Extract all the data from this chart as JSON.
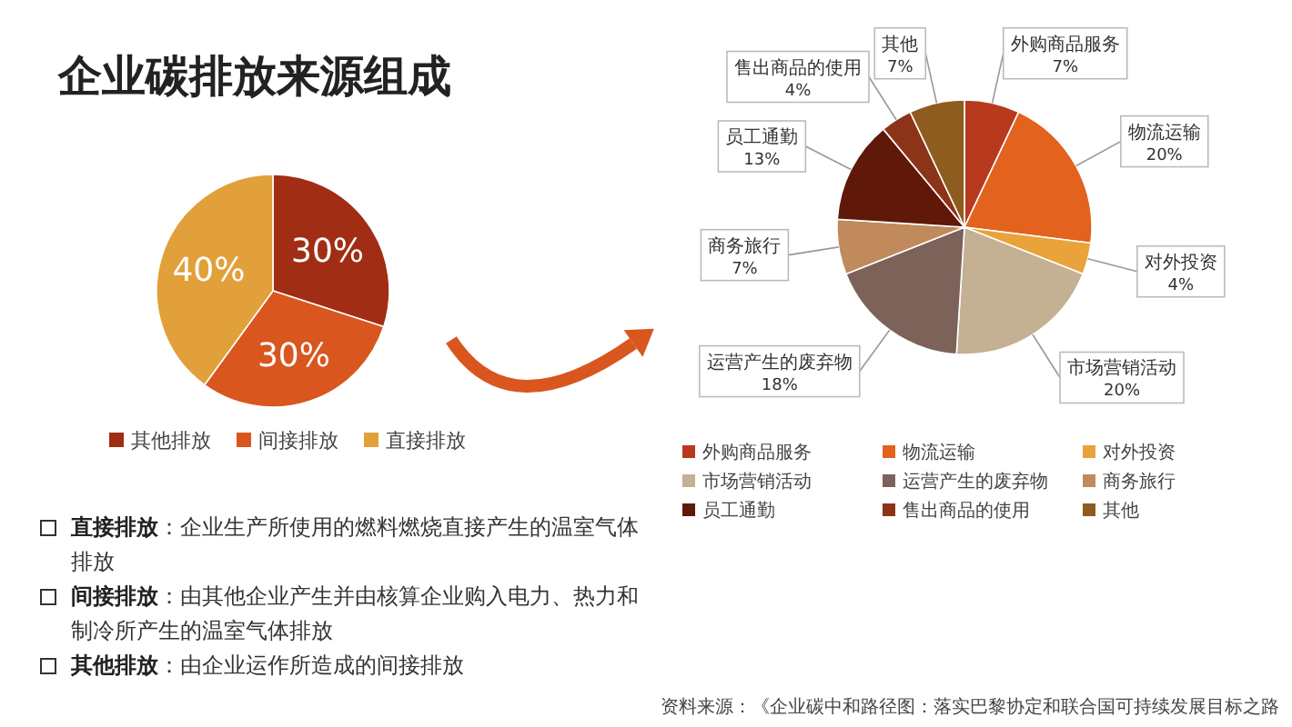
{
  "chart_data": [
    {
      "type": "pie",
      "title": "企业碳排放来源组成",
      "categories": [
        "其他排放",
        "间接排放",
        "直接排放"
      ],
      "values": [
        30,
        30,
        40
      ],
      "colors": [
        "#a12d14",
        "#d9561e",
        "#e2a03a"
      ],
      "value_labels": [
        "30%",
        "30%",
        "40%"
      ],
      "legend": "bottom",
      "annotations": [
        "直接排放：企业生产所使用的燃料燃烧直接产生的温室气体排放",
        "间接排放：由其他企业产生并由核算企业购入电力、热力和制冷所产生的温室气体排放",
        "其他排放：由企业运作所造成的间接排放"
      ]
    },
    {
      "type": "pie",
      "categories": [
        "外购商品服务",
        "物流运输",
        "对外投资",
        "市场营销活动",
        "运营产生的废弃物",
        "商务旅行",
        "员工通勤",
        "售出商品的使用",
        "其他"
      ],
      "values": [
        7,
        20,
        4,
        20,
        18,
        7,
        13,
        4,
        7
      ],
      "colors": [
        "#b83a1e",
        "#e2621e",
        "#eaa33a",
        "#c4b092",
        "#7d625a",
        "#c08a5c",
        "#601808",
        "#8c3418",
        "#8e5c1e"
      ],
      "value_labels": [
        "7%",
        "20%",
        "4%",
        "20%",
        "18%",
        "7%",
        "13%",
        "4%",
        "7%"
      ],
      "legend": "bottom",
      "annotations": [
        "资料来源：《企业碳中和路径图：落实巴黎协定和联合国可持续发展目标之路"
      ]
    }
  ]
}
